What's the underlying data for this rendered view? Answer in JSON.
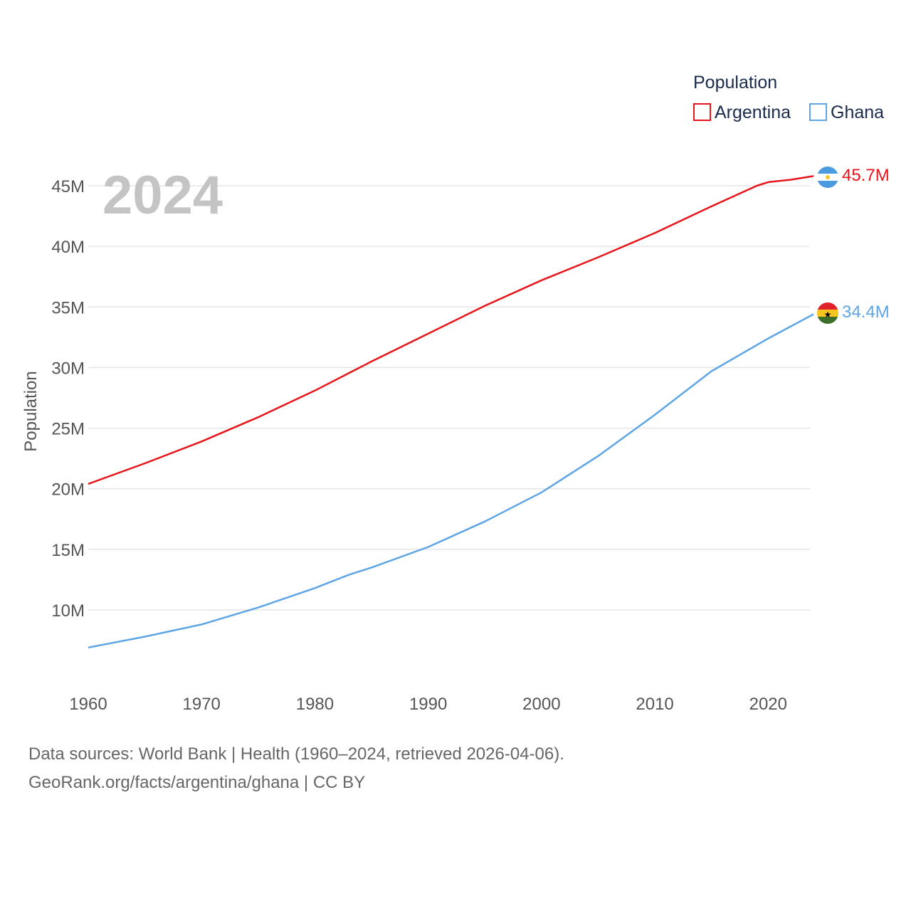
{
  "chart_data": {
    "type": "line",
    "year_label": "2024",
    "ylabel": "Population",
    "legend_title": "Population",
    "legend_position": "top-right",
    "grid": true,
    "xlim": [
      1960,
      2024
    ],
    "ylim": [
      4000000,
      48000000
    ],
    "x_ticks": [
      1960,
      1970,
      1980,
      1990,
      2000,
      2010,
      2020
    ],
    "x_tick_labels": [
      "1960",
      "1970",
      "1980",
      "1990",
      "2000",
      "2010",
      "2020"
    ],
    "y_ticks": [
      10000000,
      15000000,
      20000000,
      25000000,
      30000000,
      35000000,
      40000000,
      45000000
    ],
    "y_tick_labels": [
      "10M",
      "15M",
      "20M",
      "25M",
      "30M",
      "35M",
      "40M",
      "45M"
    ],
    "series": [
      {
        "name": "Argentina",
        "color": "#e8151b",
        "flag": "argentina-flag-icon",
        "end_label": "45.7M",
        "x": [
          1960,
          1965,
          1970,
          1975,
          1980,
          1985,
          1990,
          1995,
          2000,
          2005,
          2010,
          2015,
          2019,
          2020,
          2022,
          2024
        ],
        "y": [
          20400000,
          22100000,
          23900000,
          25900000,
          28100000,
          30500000,
          32800000,
          35100000,
          37200000,
          39100000,
          41100000,
          43300000,
          45000000,
          45300000,
          45500000,
          45800000
        ]
      },
      {
        "name": "Ghana",
        "color": "#5ea5e6",
        "flag": "ghana-flag-icon",
        "end_label": "34.4M",
        "x": [
          1960,
          1965,
          1970,
          1975,
          1980,
          1983,
          1985,
          1990,
          1995,
          2000,
          2005,
          2010,
          2015,
          2020,
          2024
        ],
        "y": [
          6900000,
          7800000,
          8800000,
          10200000,
          11800000,
          12900000,
          13500000,
          15200000,
          17300000,
          19700000,
          22700000,
          26100000,
          29700000,
          32400000,
          34400000
        ]
      }
    ]
  },
  "footer": {
    "line1": "Data sources: World Bank | Health (1960–2024, retrieved 2026-04-06).",
    "line2": "GeoRank.org/facts/argentina/ghana | CC BY"
  }
}
